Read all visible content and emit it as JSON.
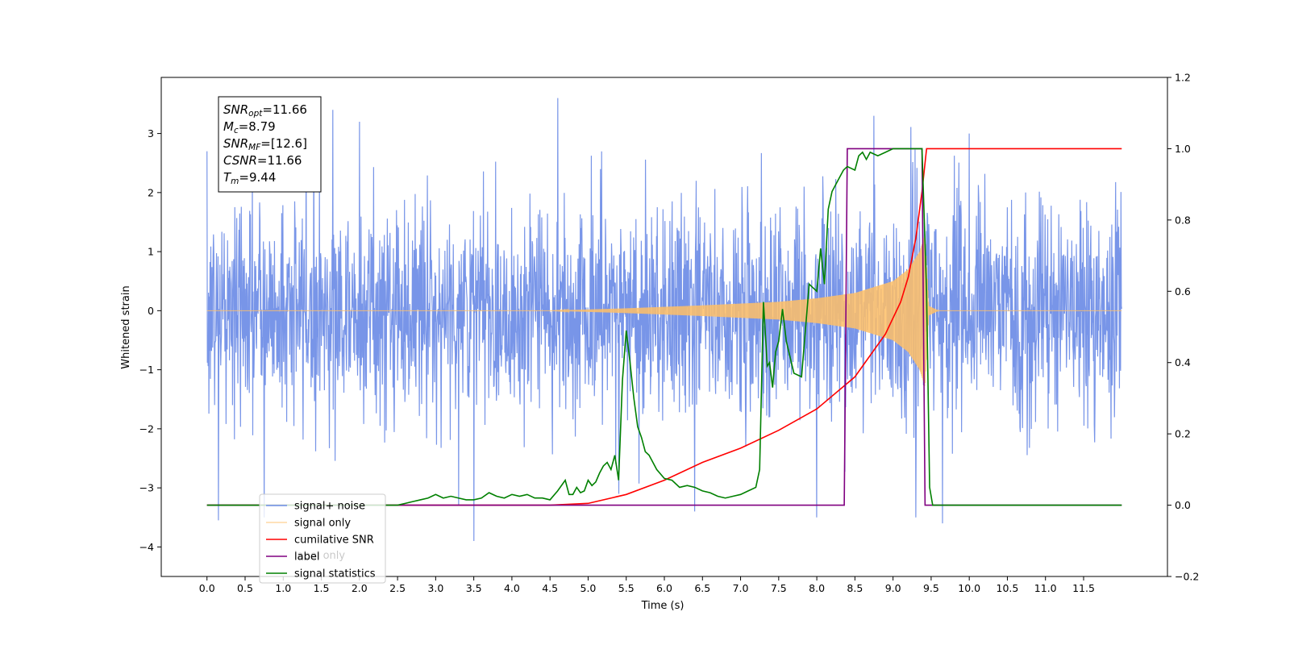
{
  "chart_data": {
    "type": "line",
    "title": "",
    "xlabel": "Time (s)",
    "ylabel": "Whitened strain",
    "xlim": [
      -0.6,
      12.6
    ],
    "ylim": [
      -4.5,
      3.95
    ],
    "y2lim": [
      -0.2,
      1.2
    ],
    "x_ticks": [
      0.0,
      0.5,
      1.0,
      1.5,
      2.0,
      2.5,
      3.0,
      3.5,
      4.0,
      4.5,
      5.0,
      5.5,
      6.0,
      6.5,
      7.0,
      7.5,
      8.0,
      8.5,
      9.0,
      9.5,
      10.0,
      10.5,
      11.0,
      11.5
    ],
    "y_ticks": [
      -4,
      -3,
      -2,
      -1,
      0,
      1,
      2,
      3
    ],
    "y2_ticks": [
      -0.2,
      0.0,
      0.2,
      0.4,
      0.6,
      0.8,
      1.0,
      1.2
    ],
    "grid": false,
    "legend": {
      "placement": "lower-left",
      "entries": [
        {
          "label": "signal+ noise",
          "color": "#6d8ce6"
        },
        {
          "label": "signal only",
          "color": "#ffbf66"
        },
        {
          "label": "cumilative SNR",
          "color": "#ff0000"
        },
        {
          "label": "label",
          "color": "#800080"
        },
        {
          "label": "signal statistics",
          "color": "#008000"
        }
      ],
      "hidden_entry": "label only"
    },
    "annotation": {
      "lines": [
        {
          "sym": "SNR",
          "sub": "opt",
          "rest": "=11.66"
        },
        {
          "sym": "M",
          "sub": "c",
          "rest": "=8.79"
        },
        {
          "sym": "SNR",
          "sub": "MF",
          "rest": "=[12.6]"
        },
        {
          "sym": "CSNR",
          "sub": "",
          "rest": "=11.66"
        },
        {
          "sym": "T",
          "sub": "m",
          "rest": "=9.44"
        }
      ]
    },
    "series": [
      {
        "name": "signal+ noise",
        "axis": "left",
        "color": "#6d8ce6",
        "x_range": [
          0.0,
          12.0
        ],
        "sigma": 0.9,
        "peak_points": [
          [
            0.0,
            2.7
          ],
          [
            0.15,
            -3.55
          ],
          [
            0.75,
            -3.5
          ],
          [
            1.3,
            3.1
          ],
          [
            1.65,
            3.4
          ],
          [
            2.0,
            3.2
          ],
          [
            3.3,
            -3.3
          ],
          [
            3.5,
            -3.9
          ],
          [
            4.6,
            3.6
          ],
          [
            5.4,
            -3.1
          ],
          [
            6.4,
            -3.4
          ],
          [
            8.0,
            -3.5
          ],
          [
            8.75,
            3.3
          ],
          [
            9.3,
            -3.5
          ],
          [
            9.65,
            -3.6
          ],
          [
            10.0,
            3.0
          ]
        ]
      },
      {
        "name": "signal only",
        "axis": "left",
        "color": "#ffbf66",
        "x_range": [
          0.0,
          12.0
        ],
        "envelope": [
          [
            4.5,
            0.0
          ],
          [
            5.5,
            0.04
          ],
          [
            6.5,
            0.09
          ],
          [
            7.5,
            0.15
          ],
          [
            8.0,
            0.21
          ],
          [
            8.5,
            0.3
          ],
          [
            9.0,
            0.5
          ],
          [
            9.2,
            0.7
          ],
          [
            9.35,
            1.0
          ],
          [
            9.42,
            1.3
          ],
          [
            9.47,
            0.08
          ],
          [
            9.6,
            0.0
          ]
        ]
      },
      {
        "name": "cumilative SNR",
        "axis": "right",
        "color": "#ff0000",
        "x": [
          0.0,
          4.5,
          5.0,
          5.5,
          6.0,
          6.5,
          7.0,
          7.5,
          8.0,
          8.5,
          8.9,
          9.1,
          9.2,
          9.3,
          9.38,
          9.44,
          12.0
        ],
        "y": [
          0.0,
          0.0,
          0.005,
          0.03,
          0.07,
          0.12,
          0.16,
          0.21,
          0.27,
          0.36,
          0.48,
          0.57,
          0.64,
          0.75,
          0.88,
          1.0,
          1.0
        ]
      },
      {
        "name": "label",
        "axis": "right",
        "color": "#800080",
        "x": [
          0.0,
          8.36,
          8.4,
          9.38,
          9.42,
          12.0
        ],
        "y": [
          0.0,
          0.0,
          1.0,
          1.0,
          0.0,
          0.0
        ]
      },
      {
        "name": "signal statistics",
        "axis": "right",
        "color": "#008000",
        "x": [
          0.0,
          2.5,
          2.6,
          2.7,
          2.8,
          2.9,
          3.0,
          3.1,
          3.2,
          3.3,
          3.4,
          3.5,
          3.6,
          3.7,
          3.8,
          3.9,
          4.0,
          4.1,
          4.2,
          4.3,
          4.4,
          4.5,
          4.6,
          4.7,
          4.75,
          4.8,
          4.85,
          4.9,
          4.95,
          5.0,
          5.05,
          5.1,
          5.15,
          5.2,
          5.25,
          5.3,
          5.35,
          5.4,
          5.45,
          5.5,
          5.55,
          5.6,
          5.65,
          5.7,
          5.75,
          5.8,
          5.9,
          6.0,
          6.1,
          6.2,
          6.3,
          6.4,
          6.5,
          6.6,
          6.7,
          6.8,
          6.9,
          7.0,
          7.1,
          7.2,
          7.25,
          7.3,
          7.35,
          7.38,
          7.42,
          7.46,
          7.5,
          7.55,
          7.6,
          7.7,
          7.8,
          7.9,
          8.0,
          8.05,
          8.1,
          8.15,
          8.2,
          8.25,
          8.3,
          8.35,
          8.4,
          8.5,
          8.55,
          8.6,
          8.65,
          8.7,
          8.8,
          8.9,
          9.0,
          9.1,
          9.2,
          9.3,
          9.38,
          9.44,
          9.48,
          9.52,
          12.0
        ],
        "y": [
          0.0,
          0.0,
          0.005,
          0.01,
          0.015,
          0.02,
          0.03,
          0.02,
          0.025,
          0.02,
          0.015,
          0.015,
          0.02,
          0.035,
          0.025,
          0.02,
          0.03,
          0.025,
          0.03,
          0.02,
          0.02,
          0.015,
          0.04,
          0.07,
          0.03,
          0.03,
          0.05,
          0.035,
          0.04,
          0.07,
          0.055,
          0.065,
          0.09,
          0.11,
          0.12,
          0.1,
          0.14,
          0.07,
          0.35,
          0.49,
          0.4,
          0.3,
          0.22,
          0.19,
          0.15,
          0.14,
          0.1,
          0.075,
          0.07,
          0.05,
          0.055,
          0.05,
          0.04,
          0.035,
          0.025,
          0.02,
          0.025,
          0.03,
          0.04,
          0.05,
          0.1,
          0.57,
          0.39,
          0.4,
          0.33,
          0.43,
          0.46,
          0.55,
          0.46,
          0.37,
          0.36,
          0.62,
          0.6,
          0.72,
          0.62,
          0.83,
          0.88,
          0.9,
          0.92,
          0.94,
          0.95,
          0.94,
          0.98,
          0.99,
          0.97,
          0.99,
          0.98,
          0.99,
          1.0,
          1.0,
          1.0,
          1.0,
          1.0,
          0.6,
          0.05,
          0.0,
          0.0
        ]
      }
    ]
  }
}
